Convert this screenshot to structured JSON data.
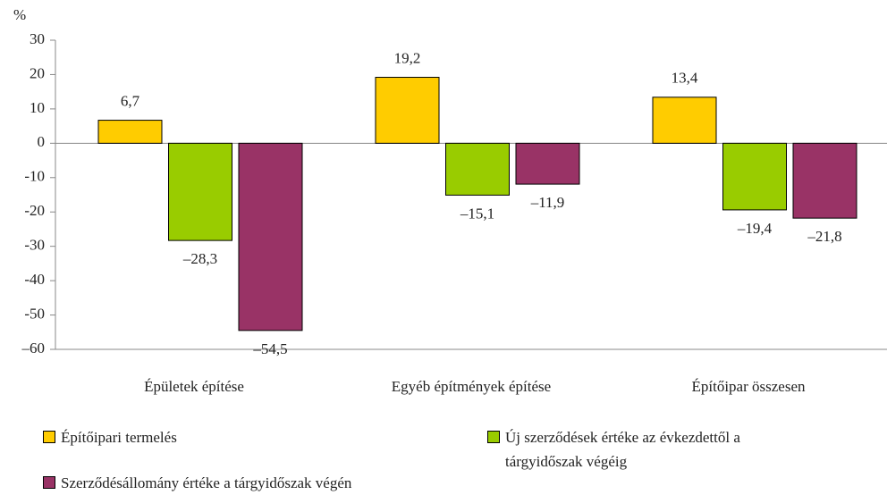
{
  "chart_data": {
    "type": "bar",
    "y_label": "%",
    "categories": [
      "Épületek építése",
      "Egyéb építmények építése",
      "Építőipar összesen"
    ],
    "series": [
      {
        "name": "Építőipari termelés",
        "color": "#ffcc00",
        "values": [
          6.7,
          19.2,
          13.4
        ],
        "value_labels": [
          "6,7",
          "19,2",
          "13,4"
        ]
      },
      {
        "name": "Új szerződések értéke az évkezdettől a tárgyidőszak végéig",
        "color": "#99cc00",
        "values": [
          -28.3,
          -15.1,
          -19.4
        ],
        "value_labels": [
          "–28,3",
          "–15,1",
          "–19,4"
        ]
      },
      {
        "name": "Szerződésállomány értéke a tárgyidőszak végén",
        "color": "#993366",
        "values": [
          -54.5,
          -11.9,
          -21.8
        ],
        "value_labels": [
          "–54,5",
          "–11,9",
          "–21,8"
        ]
      }
    ],
    "ylim": [
      -60,
      30
    ],
    "yticks": [
      {
        "value": -60,
        "label": "–60"
      },
      -50,
      -40,
      -30,
      -20,
      -10,
      0,
      10,
      20,
      30
    ],
    "grid": false
  }
}
